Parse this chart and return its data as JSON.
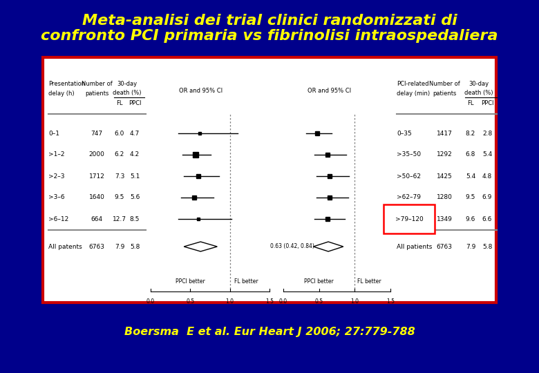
{
  "title_line1": "Meta-analisi dei trial clinici randomizzati di",
  "title_line2": "confronto PCI primaria vs fibrinolisi intraospedaliera",
  "title_color": "#FFFF00",
  "bg_color": "#00008B",
  "panel_bg": "#FFFFFF",
  "panel_border": "#CC0000",
  "subtitle": "Boersma  E et al. Eur Heart J 2006; 27:779-788",
  "subtitle_color": "#FFFF00",
  "left_rows": [
    {
      "label": "0–1",
      "n": "747",
      "fl": "6.0",
      "ppci": "4.7",
      "or": 0.62,
      "ci_lo": 0.35,
      "ci_hi": 1.1,
      "sq_size": 3.5
    },
    {
      "label": ">1–2",
      "n": "2000",
      "fl": "6.2",
      "ppci": "4.2",
      "or": 0.57,
      "ci_lo": 0.4,
      "ci_hi": 0.76,
      "sq_size": 6.0
    },
    {
      "label": ">2–3",
      "n": "1712",
      "fl": "7.3",
      "ppci": "5.1",
      "or": 0.6,
      "ci_lo": 0.42,
      "ci_hi": 0.86,
      "sq_size": 5.0
    },
    {
      "label": ">3–6",
      "n": "1640",
      "fl": "9.5",
      "ppci": "5.6",
      "or": 0.55,
      "ci_lo": 0.38,
      "ci_hi": 0.79,
      "sq_size": 5.0
    },
    {
      "label": ">6–12",
      "n": "664",
      "fl": "12.7",
      "ppci": "8.5",
      "or": 0.6,
      "ci_lo": 0.35,
      "ci_hi": 1.02,
      "sq_size": 3.5
    }
  ],
  "left_summary": {
    "label": "All patents",
    "n": "6763",
    "fl": "7.9",
    "ppci": "5.8",
    "or": 0.63,
    "ci_lo": 0.42,
    "ci_hi": 0.84,
    "text": "0.63 (0.42, 0.84)"
  },
  "right_rows": [
    {
      "label": "0–35",
      "n": "1417",
      "fl": "8.2",
      "ppci": "2.8",
      "or": 0.47,
      "ci_lo": 0.32,
      "ci_hi": 0.68,
      "highlight": false
    },
    {
      "label": ">35–50",
      "n": "1292",
      "fl": "6.8",
      "ppci": "5.4",
      "or": 0.62,
      "ci_lo": 0.44,
      "ci_hi": 0.88,
      "highlight": false
    },
    {
      "label": ">50–62",
      "n": "1425",
      "fl": "5.4",
      "ppci": "4.8",
      "or": 0.65,
      "ci_lo": 0.46,
      "ci_hi": 0.92,
      "highlight": false
    },
    {
      "label": ">62–79",
      "n": "1280",
      "fl": "9.5",
      "ppci": "6.9",
      "or": 0.65,
      "ci_lo": 0.46,
      "ci_hi": 0.91,
      "highlight": false
    },
    {
      "label": ">79–120",
      "n": "1349",
      "fl": "9.6",
      "ppci": "6.6",
      "or": 0.62,
      "ci_lo": 0.44,
      "ci_hi": 0.86,
      "highlight": true
    }
  ],
  "right_summary": {
    "label": "All patients",
    "n": "6763",
    "fl": "7.9",
    "ppci": "5.8",
    "or": 0.63,
    "ci_lo": 0.42,
    "ci_hi": 0.84
  },
  "axis_labels": [
    "0.0",
    "0.5",
    "1.0",
    "1.5"
  ],
  "axis_ticks": [
    0.0,
    0.5,
    1.0,
    1.5
  ],
  "or_label_left": "OR and 95% CI",
  "or_label_right": "OR and 95% CI",
  "ppci_better": "PPCl better",
  "fl_better": "FL better"
}
